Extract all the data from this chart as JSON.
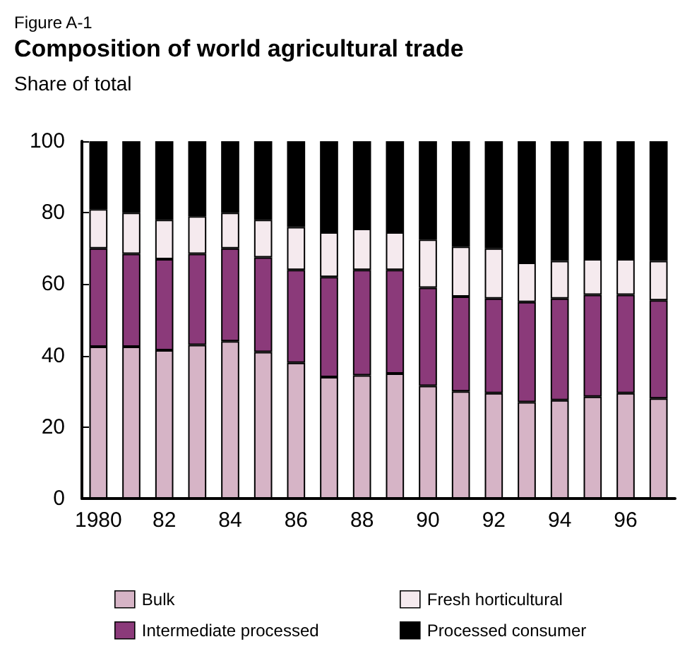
{
  "chart_data": {
    "type": "bar",
    "title": "Composition of world agricultural trade",
    "ylabel": "Share of total",
    "annotations": [
      "Figure A-1"
    ],
    "categories": [
      "1980",
      null,
      "82",
      null,
      "84",
      null,
      "86",
      null,
      "88",
      null,
      "90",
      null,
      "92",
      null,
      "94",
      null,
      "96",
      null
    ],
    "stacked": true,
    "ylim": [
      0,
      100
    ],
    "yticks": [
      0,
      20,
      40,
      60,
      80,
      100
    ],
    "grid": false,
    "legend": "bottom",
    "series": [
      {
        "name": "Bulk",
        "color": "#d6b4c6",
        "values": [
          42.5,
          42.5,
          41.5,
          43,
          44,
          41,
          38,
          34,
          34.5,
          35,
          31.5,
          30,
          29.5,
          27,
          27.5,
          28.5,
          29.5,
          28
        ]
      },
      {
        "name": "Intermediate processed",
        "color": "#8b3a7a",
        "values": [
          27.5,
          26,
          25.5,
          25.5,
          26,
          26.5,
          26,
          28,
          29.5,
          29,
          27.5,
          26.5,
          26.5,
          28,
          28.5,
          28.5,
          27.5,
          27.5
        ]
      },
      {
        "name": "Fresh horticultural",
        "color": "#f5eaee",
        "values": [
          11,
          11.5,
          11,
          10.5,
          10,
          10.5,
          12,
          12.5,
          11.5,
          10.5,
          13.5,
          14,
          14,
          11,
          10.5,
          10,
          10,
          11
        ]
      },
      {
        "name": "Processed consumer",
        "color": "#000000",
        "values": [
          19,
          20,
          22,
          21,
          20,
          22,
          24,
          25.5,
          24.5,
          25.5,
          27.5,
          29.5,
          30,
          34,
          33.5,
          33,
          33,
          33.5
        ]
      }
    ]
  }
}
